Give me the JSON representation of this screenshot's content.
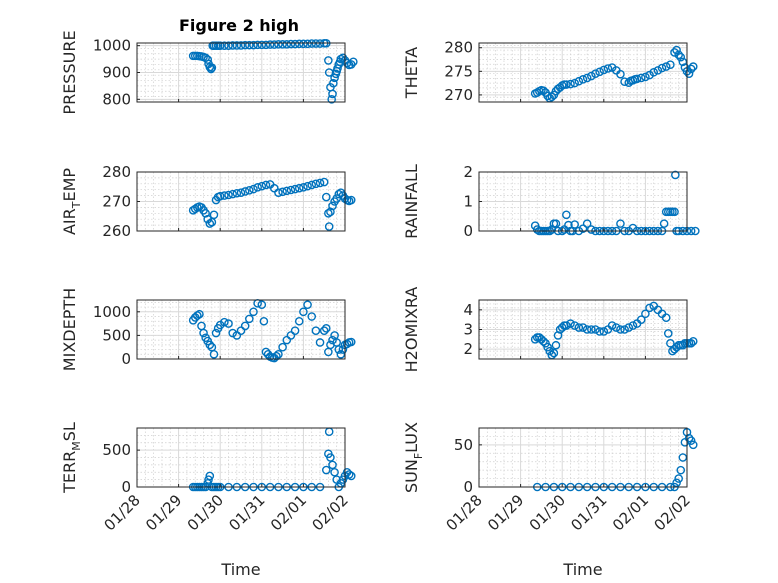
{
  "figure": {
    "title": "Figure 2 high",
    "x_tick_labels": [
      "01/28",
      "01/29",
      "01/30",
      "01/31",
      "02/01",
      "02/02"
    ],
    "x_axis_label": "Time",
    "marker_color": "#0072bd"
  },
  "chart_data": [
    {
      "id": "pressure",
      "type": "scatter",
      "ylabel": "PRESSURE",
      "ylabel_sub": "",
      "title": "Figure 2 high",
      "ylim": [
        790,
        1010
      ],
      "yticks": [
        800,
        900,
        1000
      ],
      "yticklabels": [
        "800",
        "900",
        "1000"
      ],
      "xlim": [
        "01/28",
        "02/02"
      ],
      "grid": true,
      "series": [
        {
          "x": [
            1.35,
            1.4,
            1.45,
            1.5,
            1.55,
            1.6,
            1.65,
            1.7,
            1.72,
            1.75,
            1.78,
            1.8,
            1.82,
            1.85,
            1.9,
            1.95,
            2.0,
            2.1,
            2.2,
            2.3,
            2.4,
            2.5,
            2.6,
            2.7,
            2.8,
            2.9,
            3.0,
            3.1,
            3.2,
            3.3,
            3.4,
            3.5,
            3.6,
            3.7,
            3.8,
            3.9,
            4.0,
            4.1,
            4.2,
            4.3,
            4.4,
            4.5,
            4.55,
            4.6,
            4.62,
            4.65,
            4.68,
            4.7,
            4.72,
            4.75,
            4.78,
            4.8,
            4.82,
            4.85,
            4.88,
            4.9,
            4.95,
            5.0,
            5.05,
            5.1,
            5.15,
            5.2
          ],
          "y": [
            962,
            962,
            962,
            961,
            960,
            958,
            955,
            948,
            932,
            920,
            913,
            918,
            1000,
            1000,
            1000,
            1000,
            1000,
            1000,
            1000,
            1001,
            1001,
            1001,
            1002,
            1002,
            1002,
            1003,
            1003,
            1003,
            1004,
            1004,
            1005,
            1005,
            1005,
            1006,
            1006,
            1007,
            1007,
            1007,
            1008,
            1008,
            1008,
            1009,
            1009,
            945,
            900,
            845,
            800,
            820,
            860,
            880,
            895,
            905,
            915,
            930,
            940,
            950,
            955,
            945,
            935,
            928,
            930,
            940
          ]
        }
      ]
    },
    {
      "id": "theta",
      "type": "scatter",
      "ylabel": "THETA",
      "ylabel_sub": "",
      "ylim": [
        268.5,
        281
      ],
      "yticks": [
        270,
        275,
        280
      ],
      "yticklabels": [
        "270",
        "275",
        "280"
      ],
      "xlim": [
        "01/28",
        "02/02"
      ],
      "grid": true,
      "series": [
        {
          "x": [
            1.35,
            1.4,
            1.45,
            1.5,
            1.55,
            1.6,
            1.65,
            1.7,
            1.75,
            1.8,
            1.85,
            1.9,
            1.95,
            2.0,
            2.05,
            2.1,
            2.2,
            2.3,
            2.4,
            2.5,
            2.6,
            2.7,
            2.8,
            2.9,
            3.0,
            3.1,
            3.2,
            3.3,
            3.4,
            3.5,
            3.6,
            3.65,
            3.7,
            3.75,
            3.8,
            3.9,
            4.0,
            4.1,
            4.2,
            4.3,
            4.4,
            4.5,
            4.6,
            4.7,
            4.75,
            4.8,
            4.85,
            4.9,
            4.95,
            5.0,
            5.05,
            5.1,
            5.15
          ],
          "y": [
            270.3,
            270.5,
            270.8,
            271.0,
            270.9,
            270.5,
            269.8,
            269.3,
            269.6,
            270.0,
            270.8,
            271.3,
            271.6,
            272.0,
            272.2,
            272.2,
            272.3,
            272.5,
            272.9,
            273.3,
            273.6,
            274.0,
            274.5,
            274.9,
            275.3,
            275.6,
            275.8,
            275.2,
            274.4,
            272.8,
            272.6,
            273.0,
            273.1,
            273.3,
            273.4,
            273.6,
            273.8,
            274.2,
            274.8,
            275.2,
            275.7,
            276.0,
            276.4,
            279.0,
            279.5,
            278.5,
            278.0,
            277.0,
            275.8,
            275.0,
            274.5,
            275.5,
            276.0
          ]
        }
      ]
    },
    {
      "id": "air_temp",
      "type": "scatter",
      "ylabel": "AIR",
      "ylabel_sub": "T",
      "ylabel_suffix": "EMP",
      "ylim": [
        260,
        280
      ],
      "yticks": [
        260,
        270,
        280
      ],
      "yticklabels": [
        "260",
        "270",
        "280"
      ],
      "xlim": [
        "01/28",
        "02/02"
      ],
      "grid": true,
      "series": [
        {
          "x": [
            1.35,
            1.4,
            1.45,
            1.5,
            1.55,
            1.6,
            1.65,
            1.7,
            1.75,
            1.8,
            1.85,
            1.9,
            1.95,
            2.0,
            2.1,
            2.2,
            2.3,
            2.4,
            2.5,
            2.6,
            2.7,
            2.8,
            2.9,
            3.0,
            3.1,
            3.2,
            3.3,
            3.4,
            3.5,
            3.6,
            3.7,
            3.8,
            3.9,
            4.0,
            4.1,
            4.2,
            4.3,
            4.4,
            4.5,
            4.55,
            4.6,
            4.62,
            4.65,
            4.7,
            4.75,
            4.8,
            4.85,
            4.9,
            4.95,
            5.0,
            5.05,
            5.1,
            5.15
          ],
          "y": [
            267.0,
            267.5,
            268.0,
            268.3,
            268.0,
            267.0,
            266.0,
            264.0,
            262.5,
            263.0,
            265.5,
            270.5,
            271.5,
            271.8,
            272.0,
            272.2,
            272.5,
            272.8,
            273.0,
            273.4,
            273.8,
            274.2,
            274.8,
            275.2,
            275.6,
            275.8,
            274.5,
            273.0,
            273.3,
            273.6,
            273.9,
            274.2,
            274.5,
            274.8,
            275.2,
            275.6,
            276.0,
            276.3,
            276.6,
            271.5,
            266.0,
            261.5,
            266.5,
            268.5,
            270.0,
            271.0,
            272.5,
            273.0,
            272.0,
            271.0,
            270.5,
            270.2,
            270.5
          ]
        }
      ]
    },
    {
      "id": "rainfall",
      "type": "scatter",
      "ylabel": "RAINFALL",
      "ylabel_sub": "",
      "ylim": [
        0,
        2
      ],
      "yticks": [
        0,
        1,
        2
      ],
      "yticklabels": [
        "0",
        "1",
        "2"
      ],
      "xlim": [
        "01/28",
        "02/02"
      ],
      "grid": true,
      "series": [
        {
          "x": [
            1.35,
            1.4,
            1.45,
            1.5,
            1.55,
            1.6,
            1.65,
            1.7,
            1.75,
            1.8,
            1.85,
            1.9,
            2.0,
            2.05,
            2.1,
            2.15,
            2.2,
            2.25,
            2.3,
            2.4,
            2.5,
            2.6,
            2.7,
            2.8,
            2.9,
            3.0,
            3.1,
            3.2,
            3.3,
            3.4,
            3.5,
            3.6,
            3.7,
            3.8,
            3.9,
            4.0,
            4.1,
            4.2,
            4.3,
            4.4,
            4.45,
            4.5,
            4.55,
            4.6,
            4.65,
            4.7,
            4.72,
            4.75,
            4.8,
            4.9,
            5.0,
            5.1,
            5.2
          ],
          "y": [
            0.18,
            0.05,
            0,
            0,
            0,
            0,
            0,
            0,
            0.05,
            0.25,
            0.25,
            0,
            0,
            0.05,
            0.55,
            0.2,
            0,
            0,
            0.22,
            0,
            0.08,
            0.25,
            0.05,
            0,
            0,
            0,
            0,
            0,
            0,
            0.25,
            0,
            0,
            0.1,
            0,
            0,
            0,
            0,
            0,
            0,
            0,
            0.25,
            0.65,
            0.65,
            0.65,
            0.65,
            0.65,
            1.9,
            0,
            0,
            0,
            0,
            0,
            0
          ]
        }
      ]
    },
    {
      "id": "mixdepth",
      "type": "scatter",
      "ylabel": "MIXDEPTH",
      "ylabel_sub": "",
      "ylim": [
        0,
        1250
      ],
      "yticks": [
        0,
        500,
        1000
      ],
      "yticklabels": [
        "0",
        "500",
        "1000"
      ],
      "xlim": [
        "01/28",
        "02/02"
      ],
      "grid": true,
      "series": [
        {
          "x": [
            1.35,
            1.4,
            1.45,
            1.5,
            1.55,
            1.6,
            1.65,
            1.7,
            1.75,
            1.8,
            1.85,
            1.9,
            1.95,
            2.0,
            2.1,
            2.2,
            2.3,
            2.4,
            2.5,
            2.6,
            2.7,
            2.8,
            2.9,
            3.0,
            3.05,
            3.1,
            3.15,
            3.2,
            3.25,
            3.3,
            3.35,
            3.4,
            3.5,
            3.6,
            3.7,
            3.8,
            3.9,
            4.0,
            4.1,
            4.2,
            4.3,
            4.4,
            4.5,
            4.55,
            4.6,
            4.65,
            4.7,
            4.75,
            4.8,
            4.85,
            4.9,
            4.95,
            5.0,
            5.05,
            5.1,
            5.15
          ],
          "y": [
            820,
            880,
            920,
            950,
            700,
            550,
            450,
            380,
            300,
            250,
            100,
            550,
            650,
            720,
            780,
            750,
            550,
            500,
            600,
            700,
            850,
            1000,
            1180,
            1150,
            800,
            150,
            100,
            50,
            30,
            20,
            60,
            100,
            250,
            400,
            500,
            600,
            800,
            1000,
            1150,
            900,
            600,
            350,
            600,
            650,
            150,
            300,
            400,
            500,
            350,
            200,
            100,
            200,
            300,
            320,
            350,
            360
          ]
        }
      ]
    },
    {
      "id": "h2omixra",
      "type": "scatter",
      "ylabel": "H2OMIXRA",
      "ylabel_sub": "",
      "ylim": [
        1.5,
        4.5
      ],
      "yticks": [
        2,
        3,
        4
      ],
      "yticklabels": [
        "2",
        "3",
        "4"
      ],
      "xlim": [
        "01/28",
        "02/02"
      ],
      "grid": true,
      "series": [
        {
          "x": [
            1.35,
            1.4,
            1.45,
            1.5,
            1.55,
            1.6,
            1.65,
            1.7,
            1.75,
            1.8,
            1.85,
            1.9,
            1.95,
            2.0,
            2.05,
            2.1,
            2.2,
            2.3,
            2.4,
            2.5,
            2.6,
            2.7,
            2.8,
            2.9,
            3.0,
            3.1,
            3.2,
            3.3,
            3.4,
            3.5,
            3.6,
            3.7,
            3.8,
            3.9,
            4.0,
            4.1,
            4.2,
            4.3,
            4.4,
            4.5,
            4.55,
            4.6,
            4.65,
            4.7,
            4.75,
            4.8,
            4.85,
            4.9,
            4.95,
            5.0,
            5.05,
            5.1,
            5.15
          ],
          "y": [
            2.5,
            2.6,
            2.6,
            2.5,
            2.4,
            2.3,
            2.1,
            1.9,
            1.7,
            1.8,
            2.2,
            2.7,
            3.0,
            3.1,
            3.2,
            3.2,
            3.3,
            3.2,
            3.1,
            3.1,
            3.0,
            3.0,
            3.0,
            2.9,
            2.9,
            3.0,
            3.2,
            3.1,
            3.0,
            3.0,
            3.1,
            3.2,
            3.3,
            3.5,
            3.8,
            4.1,
            4.2,
            4.0,
            3.8,
            3.6,
            2.8,
            2.3,
            1.9,
            2.0,
            2.1,
            2.2,
            2.2,
            2.2,
            2.3,
            2.3,
            2.3,
            2.3,
            2.4
          ]
        }
      ]
    },
    {
      "id": "terr_msl",
      "type": "scatter",
      "ylabel": "TERR",
      "ylabel_sub": "M",
      "ylabel_suffix": "SL",
      "ylim": [
        0,
        800
      ],
      "yticks": [
        0,
        500
      ],
      "yticklabels": [
        "0",
        "500"
      ],
      "xlim": [
        "01/28",
        "02/02"
      ],
      "grid": true,
      "series": [
        {
          "x": [
            1.35,
            1.4,
            1.45,
            1.5,
            1.55,
            1.6,
            1.65,
            1.7,
            1.72,
            1.75,
            1.8,
            1.85,
            1.9,
            1.95,
            2.0,
            2.2,
            2.4,
            2.6,
            2.8,
            3.0,
            3.2,
            3.4,
            3.6,
            3.8,
            4.0,
            4.2,
            4.4,
            4.55,
            4.6,
            4.62,
            4.65,
            4.7,
            4.75,
            4.8,
            4.85,
            4.9,
            4.95,
            5.0,
            5.05,
            5.1,
            5.15
          ],
          "y": [
            0,
            0,
            0,
            0,
            0,
            0,
            0,
            50,
            100,
            150,
            0,
            0,
            0,
            0,
            0,
            0,
            0,
            0,
            0,
            0,
            0,
            0,
            0,
            0,
            0,
            0,
            0,
            230,
            450,
            750,
            400,
            300,
            200,
            100,
            0,
            50,
            100,
            150,
            200,
            170,
            150
          ]
        }
      ]
    },
    {
      "id": "sun_flux",
      "type": "scatter",
      "ylabel": "SUN",
      "ylabel_sub": "F",
      "ylabel_suffix": "LUX",
      "ylim": [
        0,
        70
      ],
      "yticks": [
        0,
        50
      ],
      "yticklabels": [
        "0",
        "50"
      ],
      "xlim": [
        "01/28",
        "02/02"
      ],
      "grid": true,
      "series": [
        {
          "x": [
            1.4,
            1.6,
            1.8,
            2.0,
            2.2,
            2.4,
            2.6,
            2.8,
            3.0,
            3.2,
            3.4,
            3.6,
            3.8,
            4.0,
            4.2,
            4.4,
            4.6,
            4.7,
            4.75,
            4.8,
            4.85,
            4.9,
            4.95,
            5.0,
            5.05,
            5.1,
            5.15
          ],
          "y": [
            0,
            0,
            0,
            0,
            0,
            0,
            0,
            0,
            0,
            0,
            0,
            0,
            0,
            0,
            0,
            0,
            0,
            0,
            5,
            10,
            20,
            35,
            53,
            65,
            58,
            55,
            50
          ]
        }
      ]
    }
  ]
}
